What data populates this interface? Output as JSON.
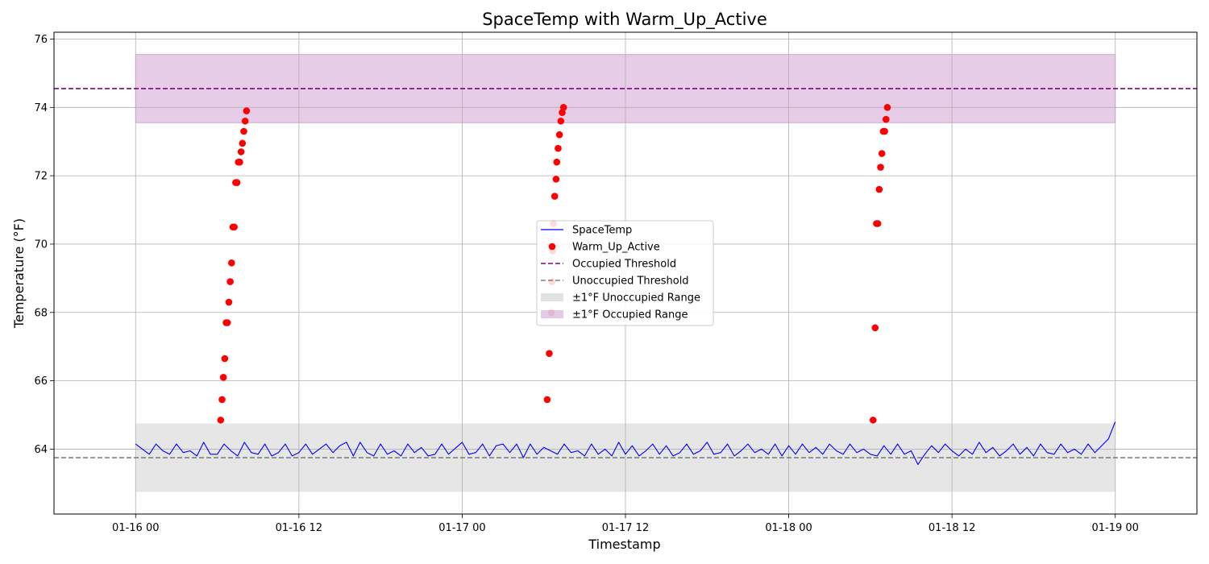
{
  "chart_data": {
    "type": "line",
    "title": "SpaceTemp with Warm_Up_Active",
    "xlabel": "Timestamp",
    "ylabel": "Temperature (°F)",
    "x_unit": "hours since 01-16 00:00",
    "xlim": [
      -6,
      78
    ],
    "ylim": [
      62.1,
      76.2
    ],
    "x_ticks": [
      {
        "value": 0,
        "label": "01-16 00"
      },
      {
        "value": 12,
        "label": "01-16 12"
      },
      {
        "value": 24,
        "label": "01-17 00"
      },
      {
        "value": 36,
        "label": "01-17 12"
      },
      {
        "value": 48,
        "label": "01-18 00"
      },
      {
        "value": 60,
        "label": "01-18 12"
      },
      {
        "value": 72,
        "label": "01-19 00"
      }
    ],
    "y_ticks": [
      64,
      66,
      68,
      70,
      72,
      74,
      76
    ],
    "grid": true,
    "legend_position": "center",
    "legend": [
      {
        "label": "SpaceTemp",
        "kind": "line",
        "color": "#0000ff"
      },
      {
        "label": "Warm_Up_Active",
        "kind": "marker",
        "color": "#ff0000"
      },
      {
        "label": "Occupied Threshold",
        "kind": "dashed",
        "color": "#800080"
      },
      {
        "label": "Unoccupied Threshold",
        "kind": "dashed",
        "color": "#808080"
      },
      {
        "label": "±1°F Unoccupied Range",
        "kind": "patch",
        "color": "#bfbfbf"
      },
      {
        "label": "±1°F Occupied Range",
        "kind": "patch",
        "color": "#c08ac8"
      }
    ],
    "occupied_threshold": 74.55,
    "unoccupied_threshold": 63.75,
    "occupied_range": [
      73.55,
      75.55
    ],
    "unoccupied_range": [
      62.75,
      64.75
    ],
    "bands_x": [
      0,
      72
    ],
    "space_temp": [
      [
        0,
        64.15
      ],
      [
        0.5,
        64.0
      ],
      [
        1,
        63.85
      ],
      [
        1.5,
        64.15
      ],
      [
        2,
        63.95
      ],
      [
        2.5,
        63.85
      ],
      [
        3,
        64.15
      ],
      [
        3.5,
        63.9
      ],
      [
        4,
        63.95
      ],
      [
        4.5,
        63.8
      ],
      [
        5,
        64.2
      ],
      [
        5.5,
        63.85
      ],
      [
        6,
        63.85
      ],
      [
        6.5,
        64.15
      ],
      [
        7,
        63.95
      ],
      [
        7.5,
        63.8
      ],
      [
        8,
        64.2
      ],
      [
        8.5,
        63.9
      ],
      [
        9,
        63.85
      ],
      [
        9.5,
        64.15
      ],
      [
        10,
        63.8
      ],
      [
        10.5,
        63.9
      ],
      [
        11,
        64.15
      ],
      [
        11.5,
        63.8
      ],
      [
        12,
        63.9
      ],
      [
        12.5,
        64.15
      ],
      [
        13,
        63.85
      ],
      [
        14,
        64.15
      ],
      [
        14.5,
        63.9
      ],
      [
        15,
        64.1
      ],
      [
        15.5,
        64.2
      ],
      [
        16,
        63.8
      ],
      [
        16.5,
        64.2
      ],
      [
        17,
        63.9
      ],
      [
        17.5,
        63.8
      ],
      [
        18,
        64.15
      ],
      [
        18.5,
        63.85
      ],
      [
        19,
        63.95
      ],
      [
        19.5,
        63.8
      ],
      [
        20,
        64.15
      ],
      [
        20.5,
        63.9
      ],
      [
        21,
        64.05
      ],
      [
        21.5,
        63.8
      ],
      [
        22,
        63.85
      ],
      [
        22.5,
        64.15
      ],
      [
        23,
        63.85
      ],
      [
        24,
        64.2
      ],
      [
        24.5,
        63.85
      ],
      [
        25,
        63.9
      ],
      [
        25.5,
        64.15
      ],
      [
        26,
        63.8
      ],
      [
        26.5,
        64.1
      ],
      [
        27,
        64.15
      ],
      [
        27.5,
        63.9
      ],
      [
        28,
        64.15
      ],
      [
        28.5,
        63.75
      ],
      [
        29,
        64.15
      ],
      [
        29.5,
        63.85
      ],
      [
        30,
        64.05
      ],
      [
        30.5,
        63.95
      ],
      [
        31,
        63.85
      ],
      [
        31.5,
        64.15
      ],
      [
        32,
        63.9
      ],
      [
        32.5,
        63.95
      ],
      [
        33,
        63.8
      ],
      [
        33.5,
        64.15
      ],
      [
        34,
        63.85
      ],
      [
        34.5,
        64.0
      ],
      [
        35,
        63.8
      ],
      [
        35.5,
        64.2
      ],
      [
        36,
        63.85
      ],
      [
        36.5,
        64.1
      ],
      [
        37,
        63.8
      ],
      [
        37.5,
        63.95
      ],
      [
        38,
        64.15
      ],
      [
        38.5,
        63.85
      ],
      [
        39,
        64.1
      ],
      [
        39.5,
        63.8
      ],
      [
        40,
        63.9
      ],
      [
        40.5,
        64.15
      ],
      [
        41,
        63.85
      ],
      [
        41.5,
        63.95
      ],
      [
        42,
        64.2
      ],
      [
        42.5,
        63.85
      ],
      [
        43,
        63.9
      ],
      [
        43.5,
        64.15
      ],
      [
        44,
        63.8
      ],
      [
        44.5,
        63.95
      ],
      [
        45,
        64.15
      ],
      [
        45.5,
        63.9
      ],
      [
        46,
        64.0
      ],
      [
        46.5,
        63.85
      ],
      [
        47,
        64.15
      ],
      [
        47.5,
        63.8
      ],
      [
        48,
        64.1
      ],
      [
        48.5,
        63.85
      ],
      [
        49,
        64.15
      ],
      [
        49.5,
        63.9
      ],
      [
        50,
        64.05
      ],
      [
        50.5,
        63.85
      ],
      [
        51,
        64.15
      ],
      [
        51.5,
        63.95
      ],
      [
        52,
        63.85
      ],
      [
        52.5,
        64.15
      ],
      [
        53,
        63.9
      ],
      [
        53.5,
        64.0
      ],
      [
        54,
        63.85
      ],
      [
        54.5,
        63.8
      ],
      [
        55,
        64.1
      ],
      [
        55.5,
        63.85
      ],
      [
        56,
        64.15
      ],
      [
        56.5,
        63.85
      ],
      [
        57,
        63.95
      ],
      [
        57.5,
        63.55
      ],
      [
        58,
        63.85
      ],
      [
        58.5,
        64.1
      ],
      [
        59,
        63.9
      ],
      [
        59.5,
        64.15
      ],
      [
        60,
        63.95
      ],
      [
        60.5,
        63.8
      ],
      [
        61,
        64.0
      ],
      [
        61.5,
        63.85
      ],
      [
        62,
        64.2
      ],
      [
        62.5,
        63.9
      ],
      [
        63,
        64.05
      ],
      [
        63.5,
        63.8
      ],
      [
        64,
        63.95
      ],
      [
        64.5,
        64.15
      ],
      [
        65,
        63.85
      ],
      [
        65.5,
        64.05
      ],
      [
        66,
        63.8
      ],
      [
        66.5,
        64.15
      ],
      [
        67,
        63.9
      ],
      [
        67.5,
        63.85
      ],
      [
        68,
        64.15
      ],
      [
        68.5,
        63.9
      ],
      [
        69,
        64.0
      ],
      [
        69.5,
        63.85
      ],
      [
        70,
        64.15
      ],
      [
        70.5,
        63.9
      ],
      [
        71,
        64.1
      ],
      [
        71.5,
        64.3
      ],
      [
        72,
        64.8
      ]
    ],
    "warm_up_active": [
      [
        6.25,
        64.85
      ],
      [
        6.35,
        65.45
      ],
      [
        6.45,
        66.1
      ],
      [
        6.55,
        66.65
      ],
      [
        6.65,
        67.7
      ],
      [
        6.75,
        67.7
      ],
      [
        6.85,
        68.3
      ],
      [
        6.95,
        68.9
      ],
      [
        7.05,
        69.45
      ],
      [
        7.15,
        70.5
      ],
      [
        7.25,
        70.5
      ],
      [
        7.35,
        71.8
      ],
      [
        7.45,
        71.8
      ],
      [
        7.55,
        72.4
      ],
      [
        7.65,
        72.4
      ],
      [
        7.75,
        72.7
      ],
      [
        7.85,
        72.95
      ],
      [
        7.95,
        73.3
      ],
      [
        8.05,
        73.6
      ],
      [
        8.15,
        73.9
      ],
      [
        30.25,
        65.45
      ],
      [
        30.4,
        66.8
      ],
      [
        30.55,
        68.0
      ],
      [
        30.6,
        68.9
      ],
      [
        30.65,
        69.8
      ],
      [
        30.7,
        70.6
      ],
      [
        30.8,
        71.4
      ],
      [
        30.9,
        71.9
      ],
      [
        30.95,
        72.4
      ],
      [
        31.05,
        72.8
      ],
      [
        31.15,
        73.2
      ],
      [
        31.25,
        73.6
      ],
      [
        31.35,
        73.85
      ],
      [
        31.45,
        74.0
      ],
      [
        54.2,
        64.85
      ],
      [
        54.35,
        67.55
      ],
      [
        54.45,
        70.6
      ],
      [
        54.55,
        70.6
      ],
      [
        54.65,
        71.6
      ],
      [
        54.75,
        72.25
      ],
      [
        54.85,
        72.65
      ],
      [
        54.95,
        73.3
      ],
      [
        55.05,
        73.3
      ],
      [
        55.15,
        73.65
      ],
      [
        55.25,
        74.0
      ]
    ]
  }
}
